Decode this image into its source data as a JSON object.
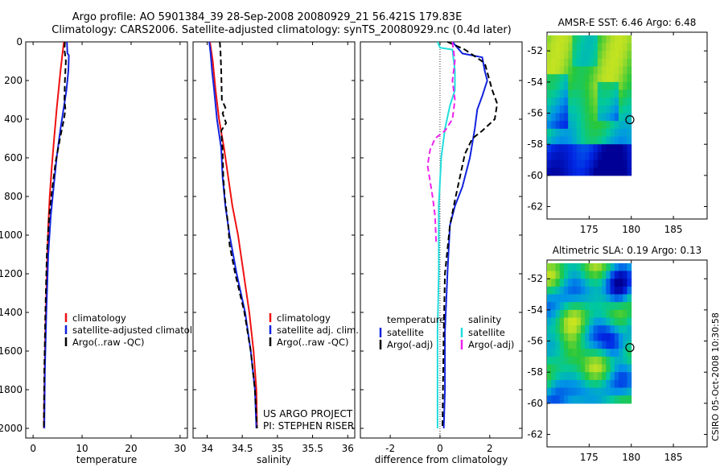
{
  "header": {
    "line1": "Argo profile: AO 5901384_39 28-Sep-2008 20080929_21 56.421S 179.83E",
    "line2": "Climatology: CARS2006. Satellite-adjusted climatology: synTS_20080929.nc (0.4d later)"
  },
  "credit": {
    "line1": "US ARGO PROJECT",
    "line2": "PI: STEPHEN RISER"
  },
  "stamp": "CSIRO 05-Oct-2008 10:30:58",
  "colors": {
    "red": "#ee1111",
    "blue": "#1122dd",
    "black": "#000000",
    "cyan": "#22dddd",
    "magenta": "#ee22ee"
  },
  "chart_data": [
    {
      "type": "line",
      "xlabel": "temperature",
      "ylim": [
        0,
        2050
      ],
      "yticks": [
        0,
        200,
        400,
        600,
        800,
        1000,
        1200,
        1400,
        1600,
        1800,
        2000
      ],
      "xlim": [
        -1.5,
        31.5
      ],
      "xticks": [
        0,
        10,
        20,
        30
      ],
      "legend": [
        "climatology",
        "satellite-adjusted climatology",
        "Argo(..raw -QC)"
      ],
      "series": [
        {
          "name": "climatology",
          "color": "red",
          "points": [
            [
              6.3,
              0
            ],
            [
              6.0,
              60
            ],
            [
              5.6,
              150
            ],
            [
              5.2,
              250
            ],
            [
              4.8,
              350
            ],
            [
              4.3,
              500
            ],
            [
              3.8,
              650
            ],
            [
              3.4,
              800
            ],
            [
              3.1,
              950
            ],
            [
              2.8,
              1200
            ],
            [
              2.5,
              1500
            ],
            [
              2.3,
              1800
            ],
            [
              2.2,
              2000
            ]
          ]
        },
        {
          "name": "satellite-adjusted climatology",
          "color": "blue",
          "points": [
            [
              6.9,
              0
            ],
            [
              7.0,
              60
            ],
            [
              7.3,
              70
            ],
            [
              7.2,
              150
            ],
            [
              6.8,
              250
            ],
            [
              6.2,
              350
            ],
            [
              5.6,
              450
            ],
            [
              4.8,
              600
            ],
            [
              4.2,
              750
            ],
            [
              3.6,
              900
            ],
            [
              3.1,
              1100
            ],
            [
              2.7,
              1400
            ],
            [
              2.4,
              1700
            ],
            [
              2.3,
              2000
            ]
          ]
        },
        {
          "name": "Argo(..raw -QC)",
          "color": "black",
          "dash": true,
          "points": [
            [
              6.5,
              0
            ],
            [
              6.4,
              40
            ],
            [
              6.7,
              100
            ],
            [
              6.5,
              200
            ],
            [
              6.4,
              300
            ],
            [
              6.6,
              350
            ],
            [
              6.3,
              400
            ],
            [
              5.5,
              500
            ],
            [
              4.6,
              620
            ],
            [
              3.8,
              780
            ],
            [
              3.3,
              900
            ],
            [
              2.8,
              1100
            ],
            [
              2.5,
              1400
            ],
            [
              2.3,
              1700
            ],
            [
              2.2,
              2000
            ]
          ]
        }
      ]
    },
    {
      "type": "line",
      "xlabel": "salinity",
      "ylim": [
        0,
        2050
      ],
      "xlim": [
        33.8,
        36.1
      ],
      "xticks": [
        34,
        34.5,
        35,
        35.5,
        36
      ],
      "legend": [
        "climatology",
        "satellite adj. clim.",
        "Argo(..raw -QC)"
      ],
      "series": [
        {
          "name": "climatology",
          "color": "red",
          "points": [
            [
              34.04,
              0
            ],
            [
              34.08,
              100
            ],
            [
              34.12,
              250
            ],
            [
              34.17,
              400
            ],
            [
              34.24,
              550
            ],
            [
              34.3,
              700
            ],
            [
              34.36,
              850
            ],
            [
              34.44,
              1000
            ],
            [
              34.52,
              1200
            ],
            [
              34.6,
              1400
            ],
            [
              34.66,
              1600
            ],
            [
              34.7,
              1800
            ],
            [
              34.71,
              2000
            ]
          ]
        },
        {
          "name": "satellite adj. clim.",
          "color": "blue",
          "points": [
            [
              34.03,
              0
            ],
            [
              34.05,
              60
            ],
            [
              34.07,
              150
            ],
            [
              34.1,
              250
            ],
            [
              34.14,
              400
            ],
            [
              34.2,
              550
            ],
            [
              34.22,
              700
            ],
            [
              34.26,
              850
            ],
            [
              34.32,
              1000
            ],
            [
              34.42,
              1200
            ],
            [
              34.54,
              1400
            ],
            [
              34.62,
              1600
            ],
            [
              34.68,
              1800
            ],
            [
              34.7,
              2000
            ]
          ]
        },
        {
          "name": "Argo(..raw -QC)",
          "color": "black",
          "dash": true,
          "points": [
            [
              34.18,
              0
            ],
            [
              34.19,
              50
            ],
            [
              34.2,
              150
            ],
            [
              34.21,
              300
            ],
            [
              34.26,
              340
            ],
            [
              34.22,
              370
            ],
            [
              34.27,
              420
            ],
            [
              34.2,
              460
            ],
            [
              34.22,
              560
            ],
            [
              34.23,
              700
            ],
            [
              34.25,
              800
            ],
            [
              34.3,
              950
            ],
            [
              34.32,
              1050
            ],
            [
              34.4,
              1200
            ],
            [
              34.53,
              1400
            ],
            [
              34.62,
              1600
            ],
            [
              34.68,
              1800
            ],
            [
              34.71,
              2000
            ]
          ]
        }
      ]
    },
    {
      "type": "line",
      "xlabel": "difference from climatology",
      "ylim": [
        0,
        2050
      ],
      "xlim": [
        -3.2,
        3.3
      ],
      "xticks": [
        -2,
        0,
        2
      ],
      "legend_groups": [
        {
          "title": "temperature",
          "items": [
            "satellite",
            "Argo(-adj)"
          ]
        },
        {
          "title": "salinity",
          "items": [
            "satellite",
            "Argo(-adj)"
          ]
        }
      ],
      "series": [
        {
          "name": "temperature satellite",
          "color": "blue",
          "points": [
            [
              0.5,
              0
            ],
            [
              0.9,
              60
            ],
            [
              1.7,
              80
            ],
            [
              1.8,
              150
            ],
            [
              1.9,
              200
            ],
            [
              1.7,
              280
            ],
            [
              1.5,
              350
            ],
            [
              1.4,
              450
            ],
            [
              1.2,
              600
            ],
            [
              0.9,
              750
            ],
            [
              0.6,
              850
            ],
            [
              0.4,
              950
            ],
            [
              0.3,
              1200
            ],
            [
              0.2,
              1500
            ],
            [
              0.2,
              1800
            ],
            [
              0.15,
              2000
            ]
          ]
        },
        {
          "name": "temperature Argo(-adj)",
          "color": "black",
          "dash": true,
          "points": [
            [
              0.3,
              0
            ],
            [
              1.0,
              40
            ],
            [
              1.8,
              110
            ],
            [
              2.1,
              250
            ],
            [
              2.3,
              320
            ],
            [
              2.2,
              400
            ],
            [
              1.7,
              460
            ],
            [
              1.3,
              500
            ],
            [
              1.0,
              580
            ],
            [
              0.8,
              700
            ],
            [
              0.6,
              820
            ],
            [
              0.4,
              950
            ],
            [
              0.2,
              1200
            ],
            [
              0.15,
              1500
            ],
            [
              0.1,
              2000
            ]
          ]
        },
        {
          "name": "salinity satellite",
          "color": "cyan",
          "points": [
            [
              -0.1,
              0
            ],
            [
              0.0,
              30
            ],
            [
              0.5,
              40
            ],
            [
              0.6,
              150
            ],
            [
              0.6,
              250
            ],
            [
              0.4,
              330
            ],
            [
              0.2,
              450
            ],
            [
              0.05,
              600
            ],
            [
              -0.05,
              850
            ],
            [
              -0.05,
              1200
            ],
            [
              -0.1,
              1500
            ],
            [
              -0.1,
              1800
            ],
            [
              -0.1,
              2000
            ]
          ]
        },
        {
          "name": "salinity Argo(-adj)",
          "color": "magenta",
          "dash": true,
          "points": [
            [
              0.5,
              0
            ],
            [
              0.6,
              100
            ],
            [
              0.5,
              200
            ],
            [
              0.6,
              300
            ],
            [
              0.5,
              400
            ],
            [
              0.2,
              460
            ],
            [
              -0.2,
              500
            ],
            [
              -0.4,
              560
            ],
            [
              -0.5,
              640
            ],
            [
              -0.4,
              720
            ],
            [
              -0.3,
              800
            ],
            [
              -0.2,
              900
            ],
            [
              -0.15,
              1050
            ]
          ]
        }
      ]
    },
    {
      "type": "heatmap",
      "title": "AMSR-E SST: 6.46 Argo: 6.48",
      "xlim": [
        170,
        189
      ],
      "ylim": [
        -62.8,
        -50.8
      ],
      "xticks": [
        175,
        180,
        185
      ],
      "yticks": [
        -52,
        -54,
        -56,
        -58,
        -60,
        -62
      ],
      "extent": {
        "lon": [
          170,
          180
        ],
        "lat": [
          -60,
          -51
        ]
      },
      "marker": {
        "lon": 179.83,
        "lat": -56.421
      }
    },
    {
      "type": "heatmap",
      "title": "Altimetric SLA: 0.19 Argo: 0.13",
      "xlim": [
        170,
        189
      ],
      "ylim": [
        -62.8,
        -50.8
      ],
      "xticks": [
        175,
        180,
        185
      ],
      "yticks": [
        -52,
        -54,
        -56,
        -58,
        -60,
        -62
      ],
      "extent": {
        "lon": [
          170,
          180
        ],
        "lat": [
          -60,
          -51
        ]
      },
      "marker": {
        "lon": 179.83,
        "lat": -56.421
      }
    }
  ]
}
